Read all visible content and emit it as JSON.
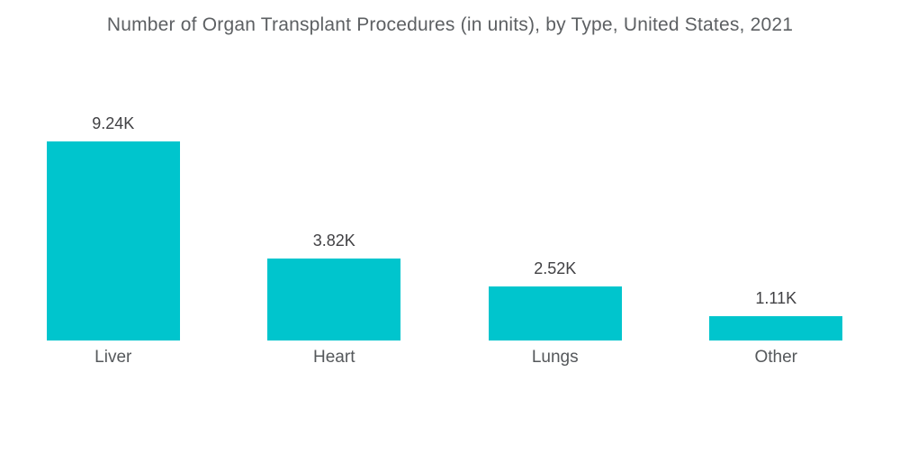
{
  "title": "Number of Organ Transplant Procedures (in units), by Type, United States, 2021",
  "colors": {
    "background": "#FFFFFF",
    "bar": "#00C5CD",
    "title_text": "#5D6063",
    "value_text": "#414144",
    "category_text": "#55585B"
  },
  "chart_data": {
    "type": "bar",
    "title": "Number of Organ Transplant Procedures (in units), by Type, United States, 2021",
    "categories": [
      "Liver",
      "Heart",
      "Lungs",
      "Other"
    ],
    "values": [
      9.24,
      3.82,
      2.52,
      1.11
    ],
    "value_labels": [
      "9.24K",
      "3.82K",
      "2.52K",
      "1.11K"
    ],
    "unit": "K units",
    "xlabel": "",
    "ylabel": "",
    "ylim": [
      0,
      9.24
    ],
    "grid": false,
    "legend": false,
    "axis_lines": false,
    "bar_orientation": "vertical"
  }
}
